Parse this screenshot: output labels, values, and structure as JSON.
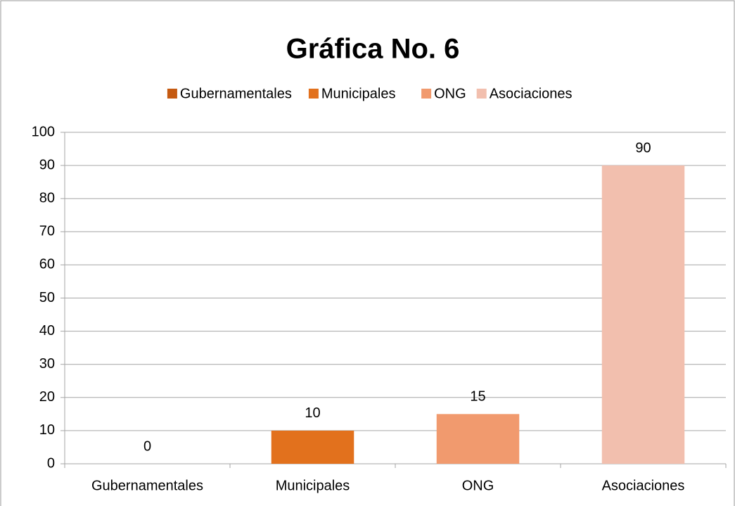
{
  "chart_data": {
    "type": "bar",
    "title": "Gráfica No. 6",
    "categories": [
      "Gubernamentales",
      "Municipales",
      "ONG",
      "Asociaciones"
    ],
    "values": [
      0,
      10,
      15,
      90
    ],
    "colors": [
      "#c55a11",
      "#e2711d",
      "#f19a6e",
      "#f2bfae"
    ],
    "ylim": [
      0,
      100
    ],
    "yticks": [
      0,
      10,
      20,
      30,
      40,
      50,
      60,
      70,
      80,
      90,
      100
    ],
    "grid": true,
    "legend": "top",
    "data_labels": true
  }
}
